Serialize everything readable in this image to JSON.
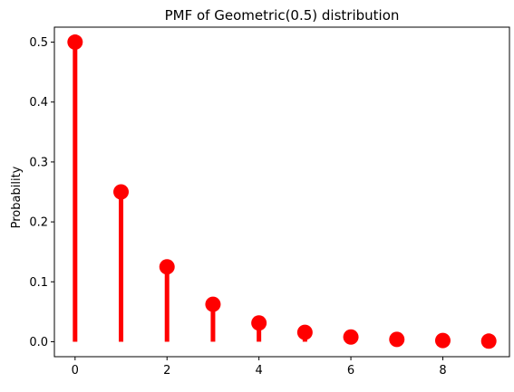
{
  "chart_data": {
    "type": "stem",
    "title": "PMF of Geometric(0.5) distribution",
    "xlabel": "",
    "ylabel": "Probability",
    "x": [
      0,
      1,
      2,
      3,
      4,
      5,
      6,
      7,
      8,
      9
    ],
    "y": [
      0.5,
      0.25,
      0.125,
      0.0625,
      0.03125,
      0.015625,
      0.0078125,
      0.00390625,
      0.001953125,
      0.0009765625
    ],
    "xlim": [
      -0.45,
      9.45
    ],
    "ylim": [
      -0.025,
      0.525
    ],
    "xticks": [
      "0",
      "2",
      "4",
      "6",
      "8"
    ],
    "yticks": [
      "0.0",
      "0.1",
      "0.2",
      "0.3",
      "0.4",
      "0.5"
    ],
    "grid": false,
    "color": "#ff0000"
  }
}
